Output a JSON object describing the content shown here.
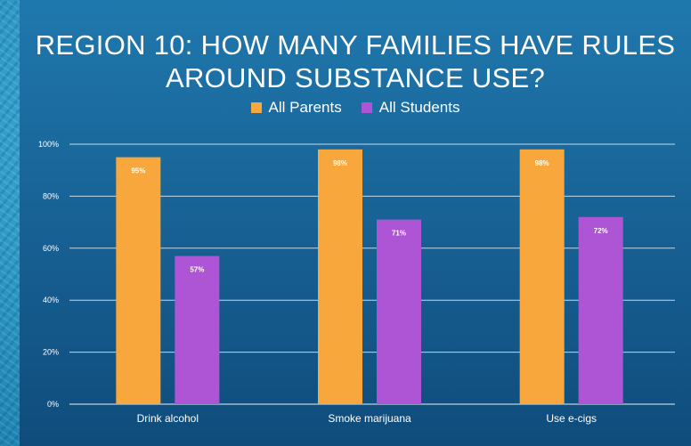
{
  "chart_data": {
    "type": "bar",
    "title": "REGION 10: HOW MANY FAMILIES HAVE RULES AROUND SUBSTANCE USE?",
    "categories": [
      "Drink alcohol",
      "Smoke marijuana",
      "Use e-cigs"
    ],
    "series": [
      {
        "name": "All Parents",
        "values": [
          95,
          98,
          98
        ],
        "labels": [
          "95%",
          "98%",
          "98%"
        ],
        "color": "#f7a73b"
      },
      {
        "name": "All Students",
        "values": [
          57,
          71,
          72
        ],
        "labels": [
          "57%",
          "71%",
          "72%"
        ],
        "color": "#ad55d4"
      }
    ],
    "ylim": [
      0,
      100
    ],
    "yticks": [
      0,
      20,
      40,
      60,
      80,
      100
    ],
    "ytick_labels": [
      "0%",
      "20%",
      "40%",
      "60%",
      "80%",
      "100%"
    ],
    "grid": true,
    "legend": "top-center",
    "xlabel": "",
    "ylabel": ""
  }
}
